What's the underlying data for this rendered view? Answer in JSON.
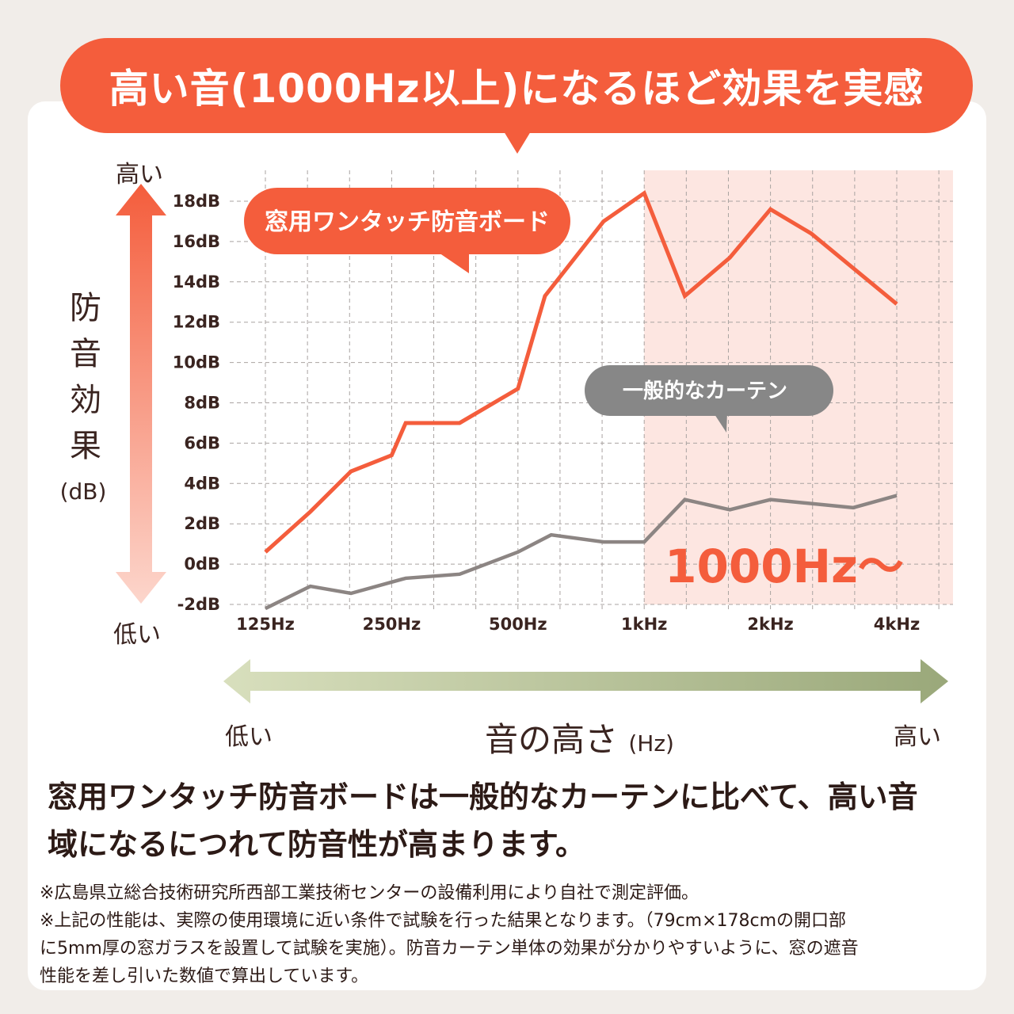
{
  "title": "高い音(1000Hz以上)になるほど効果を実感",
  "colors": {
    "accent": "#f45d3c",
    "gray_series": "#8c8583",
    "highlight_region": "#fde6e1",
    "green_arrow_start": "#d8dfbd",
    "green_arrow_end": "#9aa87a"
  },
  "y_axis": {
    "high_label": "高い",
    "low_label": "低い",
    "title_chars": [
      "防",
      "音",
      "効",
      "果"
    ],
    "unit": "(dB)"
  },
  "x_axis": {
    "low_label": "低い",
    "title": "音の高さ",
    "unit": "(Hz)",
    "high_label": "高い"
  },
  "chart_data": {
    "type": "line",
    "x_scale": "log",
    "xlabel": "音の高さ (Hz)",
    "ylabel": "防音効果 (dB)",
    "ylim": [
      -2,
      18
    ],
    "xlim": [
      125,
      5000
    ],
    "grid": true,
    "yticks": [
      "18dB",
      "16dB",
      "14dB",
      "12dB",
      "10dB",
      "8dB",
      "6dB",
      "4dB",
      "2dB",
      "0dB",
      "-2dB"
    ],
    "xticks": [
      {
        "value": 125,
        "label": "125Hz"
      },
      {
        "value": 250,
        "label": "250Hz"
      },
      {
        "value": 500,
        "label": "500Hz"
      },
      {
        "value": 1000,
        "label": "1kHz"
      },
      {
        "value": 2000,
        "label": "2kHz"
      },
      {
        "value": 4000,
        "label": "4kHz"
      }
    ],
    "highlight": {
      "from": 1000,
      "label": "1000Hz〜"
    },
    "series": [
      {
        "name": "窓用ワンタッチ防音ボード",
        "color": "#f45d3c",
        "x": [
          125,
          160,
          200,
          250,
          270,
          363,
          500,
          580,
          800,
          1000,
          1250,
          1600,
          2000,
          2500,
          4000
        ],
        "y": [
          0.6,
          2.6,
          4.6,
          5.4,
          7.0,
          7.0,
          8.7,
          13.3,
          17.0,
          18.4,
          13.3,
          15.2,
          17.6,
          16.4,
          12.9
        ]
      },
      {
        "name": "一般的なカーテン",
        "color": "#8c8583",
        "x": [
          125,
          160,
          200,
          270,
          363,
          500,
          600,
          800,
          1000,
          1250,
          1600,
          2000,
          3150,
          4000
        ],
        "y": [
          -2.2,
          -1.1,
          -1.45,
          -0.7,
          -0.5,
          0.6,
          1.45,
          1.1,
          1.1,
          3.2,
          2.7,
          3.2,
          2.8,
          3.4
        ]
      }
    ]
  },
  "statement": [
    "窓用ワンタッチ防音ボードは一般的なカーテンに比べて、高い音",
    "域になるにつれて防音性が高まります。"
  ],
  "notes": [
    "※広島県立総合技術研究所西部工業技術センターの設備利用により自社で測定評価。",
    "※上記の性能は、実際の使用環境に近い条件で試験を行った結果となります。（79cm×178cmの開口部",
    "に5mm厚の窓ガラスを設置して試験を実施）。防音カーテン単体の効果が分かりやすいように、窓の遮音",
    "性能を差し引いた数値で算出しています。"
  ]
}
